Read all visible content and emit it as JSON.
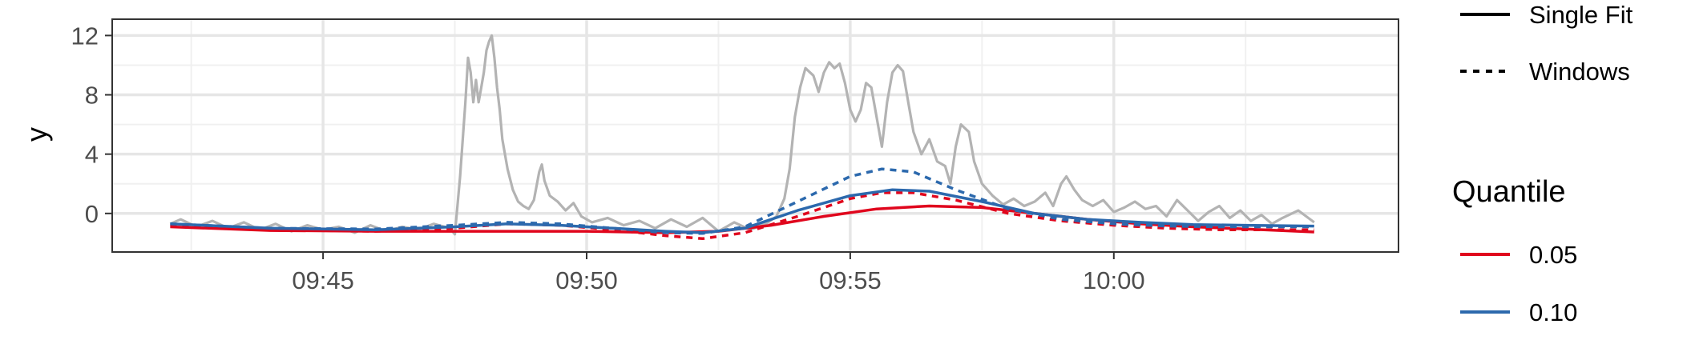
{
  "chart_data": {
    "type": "line",
    "title": "",
    "xlabel": "",
    "ylabel": "y",
    "x_ticks": [
      "09:45",
      "09:50",
      "09:55",
      "10:00"
    ],
    "x_tick_minutes": [
      45,
      50,
      55,
      60
    ],
    "xlim_minutes": [
      41.0,
      65.4
    ],
    "y_ticks": [
      0,
      4,
      8,
      12
    ],
    "ylim": [
      -2.6,
      13.1
    ],
    "grid": true,
    "legend_position": "right",
    "linetype_legend": {
      "title": "",
      "items": [
        {
          "label": "Single Fit",
          "dash": "solid"
        },
        {
          "label": "Windows",
          "dash": "dotted"
        }
      ]
    },
    "color_legend": {
      "title": "Quantile",
      "items": [
        {
          "label": "0.05",
          "color": "#e0061d"
        },
        {
          "label": "0.10",
          "color": "#2c69ad"
        }
      ]
    },
    "observed": {
      "color": "#b3b3b3",
      "points": [
        [
          42.1,
          -0.7
        ],
        [
          42.3,
          -0.4
        ],
        [
          42.6,
          -0.9
        ],
        [
          42.9,
          -0.5
        ],
        [
          43.2,
          -1.0
        ],
        [
          43.5,
          -0.6
        ],
        [
          43.8,
          -1.1
        ],
        [
          44.1,
          -0.7
        ],
        [
          44.4,
          -1.2
        ],
        [
          44.7,
          -0.8
        ],
        [
          45.0,
          -1.1
        ],
        [
          45.3,
          -0.9
        ],
        [
          45.6,
          -1.3
        ],
        [
          45.9,
          -0.8
        ],
        [
          46.2,
          -1.2
        ],
        [
          46.5,
          -0.9
        ],
        [
          46.8,
          -1.1
        ],
        [
          47.1,
          -0.7
        ],
        [
          47.4,
          -1.0
        ],
        [
          47.5,
          -1.4
        ],
        [
          47.6,
          2.5
        ],
        [
          47.7,
          7.5
        ],
        [
          47.75,
          10.5
        ],
        [
          47.8,
          9.5
        ],
        [
          47.85,
          7.5
        ],
        [
          47.9,
          9.0
        ],
        [
          47.95,
          7.5
        ],
        [
          48.0,
          8.5
        ],
        [
          48.05,
          9.5
        ],
        [
          48.1,
          11.0
        ],
        [
          48.15,
          11.6
        ],
        [
          48.2,
          12.0
        ],
        [
          48.25,
          10.5
        ],
        [
          48.3,
          8.5
        ],
        [
          48.35,
          7.0
        ],
        [
          48.4,
          5.0
        ],
        [
          48.5,
          3.0
        ],
        [
          48.6,
          1.6
        ],
        [
          48.7,
          0.8
        ],
        [
          48.8,
          0.5
        ],
        [
          48.9,
          0.3
        ],
        [
          49.0,
          0.9
        ],
        [
          49.1,
          2.8
        ],
        [
          49.15,
          3.3
        ],
        [
          49.2,
          2.2
        ],
        [
          49.3,
          1.2
        ],
        [
          49.45,
          0.8
        ],
        [
          49.6,
          0.2
        ],
        [
          49.75,
          0.7
        ],
        [
          49.9,
          -0.2
        ],
        [
          50.1,
          -0.6
        ],
        [
          50.4,
          -0.3
        ],
        [
          50.7,
          -0.8
        ],
        [
          51.0,
          -0.5
        ],
        [
          51.3,
          -1.0
        ],
        [
          51.6,
          -0.4
        ],
        [
          51.9,
          -0.9
        ],
        [
          52.2,
          -0.3
        ],
        [
          52.5,
          -1.2
        ],
        [
          52.8,
          -0.6
        ],
        [
          53.1,
          -1.1
        ],
        [
          53.4,
          -0.7
        ],
        [
          53.6,
          -0.2
        ],
        [
          53.75,
          1.0
        ],
        [
          53.85,
          3.0
        ],
        [
          53.95,
          6.5
        ],
        [
          54.05,
          8.5
        ],
        [
          54.15,
          9.8
        ],
        [
          54.3,
          9.3
        ],
        [
          54.4,
          8.2
        ],
        [
          54.5,
          9.5
        ],
        [
          54.6,
          10.2
        ],
        [
          54.7,
          9.8
        ],
        [
          54.8,
          10.1
        ],
        [
          54.9,
          8.8
        ],
        [
          55.0,
          7.0
        ],
        [
          55.1,
          6.2
        ],
        [
          55.2,
          7.0
        ],
        [
          55.3,
          8.8
        ],
        [
          55.4,
          8.5
        ],
        [
          55.5,
          6.5
        ],
        [
          55.6,
          4.5
        ],
        [
          55.7,
          7.5
        ],
        [
          55.8,
          9.5
        ],
        [
          55.9,
          10.0
        ],
        [
          56.0,
          9.6
        ],
        [
          56.1,
          7.5
        ],
        [
          56.2,
          5.5
        ],
        [
          56.35,
          4.0
        ],
        [
          56.5,
          5.0
        ],
        [
          56.65,
          3.5
        ],
        [
          56.8,
          3.2
        ],
        [
          56.9,
          2.0
        ],
        [
          57.0,
          4.5
        ],
        [
          57.1,
          6.0
        ],
        [
          57.25,
          5.5
        ],
        [
          57.35,
          3.5
        ],
        [
          57.5,
          2.0
        ],
        [
          57.7,
          1.2
        ],
        [
          57.9,
          0.6
        ],
        [
          58.1,
          1.0
        ],
        [
          58.3,
          0.5
        ],
        [
          58.5,
          0.8
        ],
        [
          58.7,
          1.4
        ],
        [
          58.85,
          0.5
        ],
        [
          59.0,
          2.0
        ],
        [
          59.1,
          2.5
        ],
        [
          59.25,
          1.6
        ],
        [
          59.4,
          0.9
        ],
        [
          59.6,
          0.5
        ],
        [
          59.8,
          0.9
        ],
        [
          60.0,
          0.1
        ],
        [
          60.2,
          0.4
        ],
        [
          60.4,
          0.8
        ],
        [
          60.6,
          0.3
        ],
        [
          60.8,
          0.5
        ],
        [
          61.0,
          -0.2
        ],
        [
          61.2,
          0.9
        ],
        [
          61.4,
          0.2
        ],
        [
          61.6,
          -0.5
        ],
        [
          61.8,
          0.1
        ],
        [
          62.0,
          0.5
        ],
        [
          62.2,
          -0.3
        ],
        [
          62.4,
          0.2
        ],
        [
          62.6,
          -0.5
        ],
        [
          62.8,
          -0.1
        ],
        [
          63.0,
          -0.7
        ],
        [
          63.2,
          -0.3
        ],
        [
          63.5,
          0.2
        ],
        [
          63.8,
          -0.6
        ]
      ]
    },
    "series": [
      {
        "quantile": "0.05",
        "method": "Single Fit",
        "color": "#e0061d",
        "dash": "solid",
        "points": [
          [
            42.1,
            -0.9
          ],
          [
            44.0,
            -1.15
          ],
          [
            46.0,
            -1.2
          ],
          [
            48.0,
            -1.2
          ],
          [
            50.0,
            -1.2
          ],
          [
            51.5,
            -1.3
          ],
          [
            52.5,
            -1.2
          ],
          [
            53.5,
            -0.8
          ],
          [
            54.5,
            -0.2
          ],
          [
            55.5,
            0.3
          ],
          [
            56.5,
            0.5
          ],
          [
            57.5,
            0.4
          ],
          [
            58.5,
            0.0
          ],
          [
            59.5,
            -0.4
          ],
          [
            60.5,
            -0.7
          ],
          [
            61.5,
            -0.9
          ],
          [
            62.5,
            -1.05
          ],
          [
            63.8,
            -1.25
          ]
        ]
      },
      {
        "quantile": "0.05",
        "method": "Windows",
        "color": "#e0061d",
        "dash": "dotted",
        "points": [
          [
            42.1,
            -0.8
          ],
          [
            44.0,
            -1.1
          ],
          [
            46.0,
            -1.2
          ],
          [
            47.5,
            -1.0
          ],
          [
            48.5,
            -0.7
          ],
          [
            49.5,
            -0.8
          ],
          [
            50.5,
            -1.1
          ],
          [
            51.5,
            -1.5
          ],
          [
            52.2,
            -1.7
          ],
          [
            53.0,
            -1.3
          ],
          [
            54.0,
            -0.2
          ],
          [
            55.0,
            1.0
          ],
          [
            55.6,
            1.4
          ],
          [
            56.2,
            1.4
          ],
          [
            57.0,
            0.9
          ],
          [
            58.0,
            0.0
          ],
          [
            59.0,
            -0.5
          ],
          [
            60.0,
            -0.8
          ],
          [
            61.0,
            -1.0
          ],
          [
            62.0,
            -1.1
          ],
          [
            63.8,
            -1.1
          ]
        ]
      },
      {
        "quantile": "0.10",
        "method": "Single Fit",
        "color": "#2c69ad",
        "dash": "solid",
        "points": [
          [
            42.1,
            -0.7
          ],
          [
            44.0,
            -1.0
          ],
          [
            46.0,
            -1.1
          ],
          [
            47.5,
            -0.9
          ],
          [
            48.5,
            -0.7
          ],
          [
            49.5,
            -0.8
          ],
          [
            50.5,
            -1.0
          ],
          [
            51.5,
            -1.2
          ],
          [
            52.2,
            -1.3
          ],
          [
            53.0,
            -1.0
          ],
          [
            54.0,
            0.2
          ],
          [
            55.0,
            1.2
          ],
          [
            55.8,
            1.6
          ],
          [
            56.5,
            1.5
          ],
          [
            57.5,
            0.8
          ],
          [
            58.5,
            0.0
          ],
          [
            59.5,
            -0.4
          ],
          [
            60.5,
            -0.6
          ],
          [
            61.5,
            -0.75
          ],
          [
            62.5,
            -0.8
          ],
          [
            63.8,
            -0.85
          ]
        ]
      },
      {
        "quantile": "0.10",
        "method": "Windows",
        "color": "#2c69ad",
        "dash": "dotted",
        "points": [
          [
            42.1,
            -0.7
          ],
          [
            44.0,
            -1.0
          ],
          [
            46.0,
            -1.05
          ],
          [
            47.5,
            -0.8
          ],
          [
            48.5,
            -0.6
          ],
          [
            49.5,
            -0.7
          ],
          [
            50.5,
            -1.0
          ],
          [
            51.5,
            -1.3
          ],
          [
            52.2,
            -1.35
          ],
          [
            53.0,
            -0.9
          ],
          [
            54.0,
            0.8
          ],
          [
            55.0,
            2.5
          ],
          [
            55.6,
            3.0
          ],
          [
            56.2,
            2.8
          ],
          [
            57.0,
            1.6
          ],
          [
            58.0,
            0.3
          ],
          [
            59.0,
            -0.4
          ],
          [
            60.0,
            -0.7
          ],
          [
            61.0,
            -0.85
          ],
          [
            62.0,
            -0.9
          ],
          [
            63.8,
            -0.9
          ]
        ]
      }
    ]
  }
}
